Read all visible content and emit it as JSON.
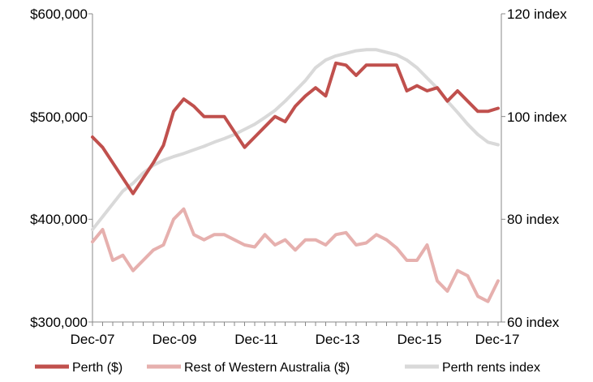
{
  "chart_data": {
    "type": "line",
    "title": "",
    "x_tick_labels": [
      "Dec-07",
      "Dec-09",
      "Dec-11",
      "Dec-13",
      "Dec-15",
      "Dec-17"
    ],
    "y_left": {
      "ticks": [
        "$300,000",
        "$400,000",
        "$500,000",
        "$600,000"
      ],
      "ylim": [
        300000,
        600000
      ]
    },
    "y_right": {
      "ticks": [
        "60 index",
        "80 index",
        "100 index",
        "120 index"
      ],
      "ylim": [
        60,
        120
      ]
    },
    "grid": false,
    "legend_position": "bottom",
    "series": [
      {
        "name": "Perth ($)",
        "axis": "left",
        "color": "#c0504d",
        "values": [
          480000,
          470000,
          455000,
          440000,
          425000,
          440000,
          455000,
          472000,
          505000,
          517000,
          510000,
          500000,
          500000,
          500000,
          485000,
          470000,
          480000,
          490000,
          500000,
          495000,
          510000,
          520000,
          528000,
          520000,
          552000,
          550000,
          540000,
          550000,
          550000,
          550000,
          550000,
          525000,
          530000,
          525000,
          528000,
          515000,
          525000,
          515000,
          505000,
          505000,
          508000
        ]
      },
      {
        "name": "Rest of Western Australia ($)",
        "axis": "left",
        "color": "#e6b0ae",
        "values": [
          378000,
          390000,
          360000,
          365000,
          350000,
          360000,
          370000,
          375000,
          400000,
          410000,
          385000,
          380000,
          385000,
          385000,
          380000,
          375000,
          373000,
          385000,
          375000,
          380000,
          370000,
          380000,
          380000,
          375000,
          385000,
          387000,
          375000,
          377000,
          385000,
          380000,
          372000,
          360000,
          360000,
          375000,
          340000,
          330000,
          350000,
          345000,
          325000,
          320000,
          340000
        ]
      },
      {
        "name": "Perth rents index",
        "axis": "right",
        "color": "#d9d9d9",
        "values": [
          78,
          80.5,
          83,
          85.5,
          87,
          89,
          90.5,
          91.5,
          92.2,
          92.8,
          93.5,
          94.2,
          95,
          95.7,
          96.5,
          97.5,
          98.5,
          99.8,
          101.2,
          103,
          105,
          107,
          109.5,
          111,
          111.8,
          112.3,
          112.8,
          113,
          113,
          112.5,
          112,
          111,
          109.5,
          107.5,
          105.5,
          103,
          100.8,
          98.5,
          96.5,
          95,
          94.5
        ]
      }
    ]
  }
}
